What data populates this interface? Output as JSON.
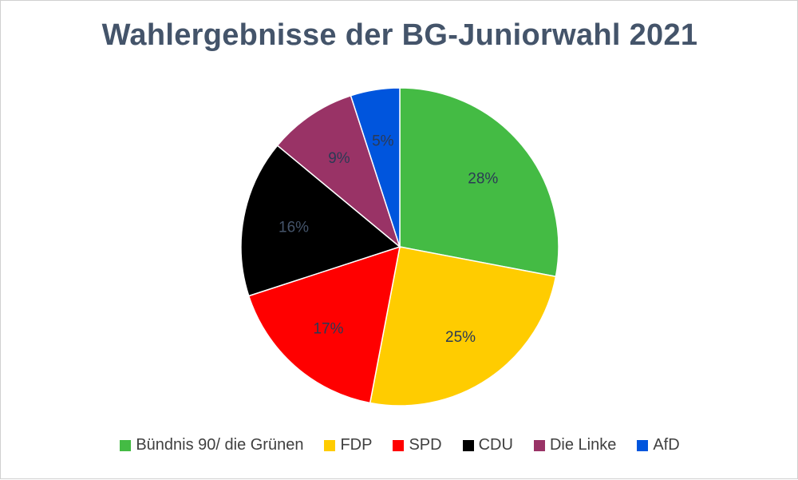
{
  "chart_data": {
    "type": "pie",
    "title": "Wahlergebnisse der BG-Juniorwahl 2021",
    "labels": [
      "Bündnis 90/ die Grünen",
      "FDP",
      "SPD",
      "CDU",
      "Die Linke",
      "AfD"
    ],
    "values": [
      28,
      25,
      17,
      16,
      9,
      5
    ],
    "data_labels": [
      "28%",
      "25%",
      "17%",
      "16%",
      "9%",
      "5%"
    ],
    "colors": [
      "#44bb44",
      "#ffcc00",
      "#ff0000",
      "#000000",
      "#993366",
      "#0055dd"
    ],
    "legend_position": "bottom"
  }
}
